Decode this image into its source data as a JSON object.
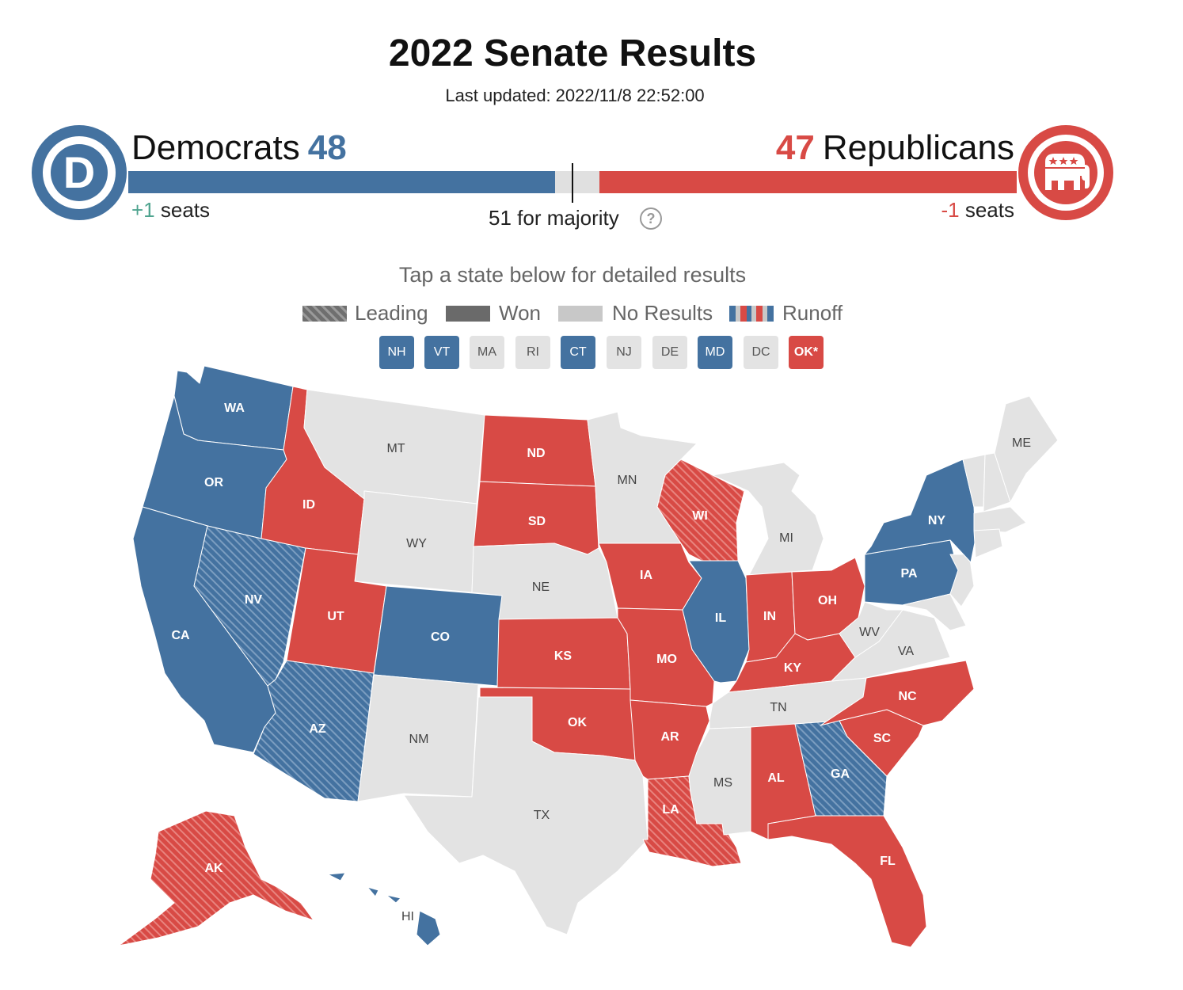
{
  "header": {
    "title": "2022 Senate Results",
    "updated_label": "Last updated:",
    "updated_value": "2022/11/8 22:52:00"
  },
  "colors": {
    "dem": "#4472a0",
    "rep": "#d84a45",
    "none": "#e3e3e3",
    "rep_light": "#de6a62",
    "swing_green": "#4fa48f"
  },
  "totals": {
    "dem": {
      "name": "Democrats",
      "seats": "48",
      "change_value": "+1",
      "change_label": "seats",
      "logo_letter": "D"
    },
    "rep": {
      "name": "Republicans",
      "seats": "47",
      "change_value": "-1",
      "change_label": "seats",
      "logo_icon": "elephant-icon"
    },
    "total_seats": 100,
    "majority_label": "51 for majority",
    "help_icon": "question-icon",
    "help_glyph": "?"
  },
  "instructions": "Tap a state below for detailed results",
  "legend": [
    {
      "label": "Leading",
      "pattern": "hatched"
    },
    {
      "label": "Won",
      "pattern": "solid"
    },
    {
      "label": "No Results",
      "pattern": "light"
    },
    {
      "label": "Runoff",
      "pattern": "striped"
    }
  ],
  "small_states": [
    {
      "code": "NH",
      "status": "dem"
    },
    {
      "code": "VT",
      "status": "dem"
    },
    {
      "code": "MA",
      "status": "none"
    },
    {
      "code": "RI",
      "status": "none"
    },
    {
      "code": "CT",
      "status": "dem"
    },
    {
      "code": "NJ",
      "status": "none"
    },
    {
      "code": "DE",
      "status": "none"
    },
    {
      "code": "MD",
      "status": "dem"
    },
    {
      "code": "DC",
      "status": "none"
    },
    {
      "code": "OK*",
      "status": "rep"
    }
  ],
  "states": [
    {
      "code": "WA",
      "status": "dem-won"
    },
    {
      "code": "OR",
      "status": "dem-won"
    },
    {
      "code": "CA",
      "status": "dem-won"
    },
    {
      "code": "NV",
      "status": "dem-leading"
    },
    {
      "code": "ID",
      "status": "rep-won"
    },
    {
      "code": "MT",
      "status": "none"
    },
    {
      "code": "WY",
      "status": "none"
    },
    {
      "code": "UT",
      "status": "rep-won"
    },
    {
      "code": "AZ",
      "status": "dem-leading"
    },
    {
      "code": "CO",
      "status": "dem-won"
    },
    {
      "code": "NM",
      "status": "none"
    },
    {
      "code": "ND",
      "status": "rep-won"
    },
    {
      "code": "SD",
      "status": "rep-won"
    },
    {
      "code": "NE",
      "status": "none"
    },
    {
      "code": "KS",
      "status": "rep-won"
    },
    {
      "code": "OK",
      "status": "rep-won"
    },
    {
      "code": "TX",
      "status": "none"
    },
    {
      "code": "MN",
      "status": "none"
    },
    {
      "code": "IA",
      "status": "rep-won"
    },
    {
      "code": "MO",
      "status": "rep-won"
    },
    {
      "code": "AR",
      "status": "rep-won"
    },
    {
      "code": "LA",
      "status": "rep-leading"
    },
    {
      "code": "WI",
      "status": "rep-leading"
    },
    {
      "code": "IL",
      "status": "dem-won"
    },
    {
      "code": "MI",
      "status": "none"
    },
    {
      "code": "IN",
      "status": "rep-won"
    },
    {
      "code": "OH",
      "status": "rep-won"
    },
    {
      "code": "KY",
      "status": "rep-won"
    },
    {
      "code": "TN",
      "status": "none"
    },
    {
      "code": "MS",
      "status": "none"
    },
    {
      "code": "AL",
      "status": "rep-won"
    },
    {
      "code": "GA",
      "status": "dem-leading"
    },
    {
      "code": "FL",
      "status": "rep-won"
    },
    {
      "code": "SC",
      "status": "rep-won"
    },
    {
      "code": "NC",
      "status": "rep-won"
    },
    {
      "code": "VA",
      "status": "none"
    },
    {
      "code": "WV",
      "status": "none"
    },
    {
      "code": "PA",
      "status": "dem-won"
    },
    {
      "code": "NY",
      "status": "dem-won"
    },
    {
      "code": "ME",
      "status": "none"
    },
    {
      "code": "AK",
      "status": "rep-leading"
    },
    {
      "code": "HI",
      "status": "dem-won"
    }
  ]
}
